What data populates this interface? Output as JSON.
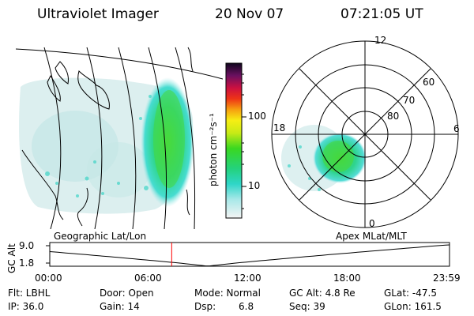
{
  "header": {
    "instrument": "Ultraviolet Imager",
    "date": "20 Nov 07",
    "time": "07:21:05 UT"
  },
  "colorbar": {
    "unit_label": "photon cm⁻²s⁻¹",
    "ticks": [
      "100",
      "10"
    ]
  },
  "polar": {
    "mlt_labels": {
      "top": "12",
      "right": "6",
      "left": "18",
      "bottom": "0"
    },
    "lat_labels": [
      "60",
      "70",
      "80"
    ]
  },
  "panel_labels": {
    "left": "Geographic Lat/Lon",
    "right": "Apex MLat/MLT"
  },
  "orbit": {
    "ylabel": "GC Alt",
    "ymax_label": "9.0",
    "ymin_label": "1.8",
    "time_ticks": [
      "00:00",
      "06:00",
      "12:00",
      "18:00",
      "23:59"
    ],
    "current_time_fraction": 0.305,
    "marker_color": "#ff0000"
  },
  "status": {
    "filter": "Flt: LBHL",
    "door": "Door: Open",
    "mode": "Mode: Normal",
    "gc_alt": "GC Alt: 4.8 Re",
    "glat": "GLat: -47.5",
    "ip": "IP: 36.0",
    "gain": "Gain: 14",
    "dsp_label": "Dsp:",
    "dsp_value": "6.8",
    "seq": "Seq: 39",
    "glon": "GLon: 161.5"
  }
}
